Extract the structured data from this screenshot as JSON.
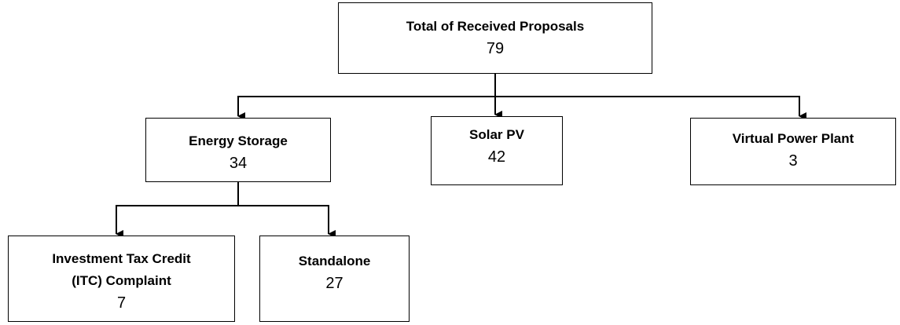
{
  "nodes": [
    {
      "label": "Total of Received Proposals",
      "value": 79
    },
    {
      "label": "Energy Storage",
      "value": 34
    },
    {
      "label": "Solar PV",
      "value": 42
    },
    {
      "label": "Virtual Power Plant",
      "value": 3
    },
    {
      "label": "Investment Tax Credit (ITC) Complaint",
      "value": 7
    },
    {
      "label": "Standalone",
      "value": 27
    }
  ]
}
